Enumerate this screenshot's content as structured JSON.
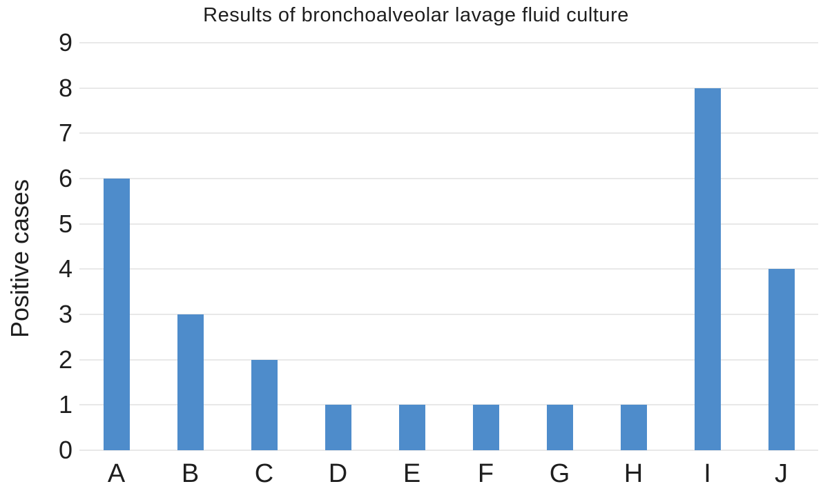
{
  "chart_data": {
    "type": "bar",
    "title": "Results of bronchoalveolar lavage fluid culture",
    "categories": [
      "A",
      "B",
      "C",
      "D",
      "E",
      "F",
      "G",
      "H",
      "I",
      "J"
    ],
    "values": [
      6,
      3,
      2,
      1,
      1,
      1,
      1,
      1,
      8,
      4
    ],
    "xlabel": "",
    "ylabel": "Positive cases",
    "ylim": [
      0,
      9
    ],
    "yticks": [
      0,
      1,
      2,
      3,
      4,
      5,
      6,
      7,
      8,
      9
    ],
    "grid": true,
    "legend": false,
    "bar_color": "#4e8ccb",
    "gridline_color": "#e8e8e8",
    "text_color": "#1e1e1e",
    "background": "#ffffff"
  }
}
